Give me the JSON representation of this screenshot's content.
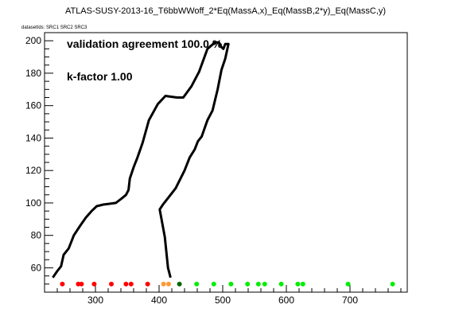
{
  "chart_data": {
    "type": "scatter",
    "title": "ATLAS-SUSY-2013-16_T6bbWWoff_2*Eq(MassA,x)_Eq(MassB,2*y)_Eq(MassC,y)",
    "dataset_label": "datasetIds: SRC1 SRC2 SRC3",
    "annotations": [
      "validation agreement 100.0 %",
      "k-factor 1.00"
    ],
    "xlim": [
      220,
      790
    ],
    "ylim": [
      45,
      205
    ],
    "xticks": [
      300,
      400,
      500,
      600,
      700
    ],
    "yticks": [
      60,
      80,
      100,
      120,
      140,
      160,
      180,
      200
    ],
    "grid": false,
    "exclusion_contour": {
      "color": "#000000",
      "x": [
        233,
        240,
        246,
        250,
        258,
        266,
        276,
        285,
        294,
        302,
        312,
        322,
        332,
        342,
        348,
        352,
        354,
        360,
        366,
        374,
        384,
        398,
        410,
        428,
        438,
        451,
        463,
        476,
        488,
        494,
        498,
        501,
        504,
        509,
        504,
        498,
        492,
        484,
        476,
        467,
        461,
        456,
        448,
        440,
        426,
        416,
        406,
        401,
        409,
        414,
        418
      ],
      "y": [
        54,
        58,
        61,
        68,
        72,
        80,
        86,
        91,
        95,
        98,
        99,
        99.5,
        100,
        103,
        105,
        108,
        115,
        122,
        128,
        137,
        151,
        161,
        166,
        165,
        165,
        172,
        181,
        195,
        199,
        199,
        196,
        195,
        198,
        198,
        189,
        182,
        170,
        157,
        151,
        141,
        138,
        133,
        128,
        120,
        109,
        104,
        99,
        96,
        79,
        60,
        54
      ]
    },
    "points": [
      {
        "x": 248,
        "y": 50,
        "status": "excluded"
      },
      {
        "x": 273,
        "y": 50,
        "status": "excluded"
      },
      {
        "x": 278,
        "y": 50,
        "status": "excluded"
      },
      {
        "x": 298,
        "y": 50,
        "status": "excluded"
      },
      {
        "x": 325,
        "y": 50,
        "status": "excluded"
      },
      {
        "x": 348,
        "y": 50,
        "status": "excluded"
      },
      {
        "x": 356,
        "y": 50,
        "status": "excluded"
      },
      {
        "x": 382,
        "y": 50,
        "status": "excluded"
      },
      {
        "x": 407,
        "y": 50,
        "status": "borderline"
      },
      {
        "x": 415,
        "y": 50,
        "status": "borderline"
      },
      {
        "x": 432,
        "y": 50,
        "status": "allowed-near"
      },
      {
        "x": 459,
        "y": 50,
        "status": "allowed"
      },
      {
        "x": 486,
        "y": 50,
        "status": "allowed"
      },
      {
        "x": 513,
        "y": 50,
        "status": "allowed"
      },
      {
        "x": 539,
        "y": 50,
        "status": "allowed"
      },
      {
        "x": 556,
        "y": 50,
        "status": "allowed"
      },
      {
        "x": 566,
        "y": 50,
        "status": "allowed"
      },
      {
        "x": 592,
        "y": 50,
        "status": "allowed"
      },
      {
        "x": 618,
        "y": 50,
        "status": "allowed"
      },
      {
        "x": 626,
        "y": 50,
        "status": "allowed"
      },
      {
        "x": 697,
        "y": 50,
        "status": "allowed"
      },
      {
        "x": 767,
        "y": 50,
        "status": "allowed"
      }
    ],
    "status_colors": {
      "excluded": "#ff0000",
      "borderline": "#ff9933",
      "allowed-near": "#006600",
      "allowed": "#00ee00"
    }
  }
}
